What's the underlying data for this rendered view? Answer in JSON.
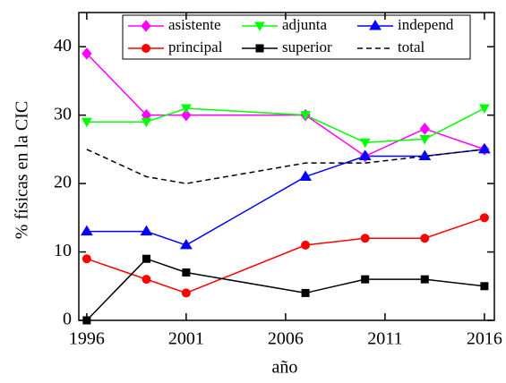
{
  "chart_data": {
    "type": "line",
    "x_label": "año",
    "y_label": "% físicas en la CIC",
    "x": [
      1996,
      1999,
      2001,
      2007,
      2010,
      2013,
      2016
    ],
    "series": [
      {
        "name": "asistente",
        "color": "#ff00ff",
        "marker": "diamond",
        "linestyle": "solid",
        "values": [
          39,
          30,
          30,
          30,
          24,
          28,
          25
        ]
      },
      {
        "name": "adjunta",
        "color": "#00ff00",
        "marker": "triangle-down",
        "linestyle": "solid",
        "values": [
          29,
          29,
          31,
          30,
          26,
          26.5,
          31
        ]
      },
      {
        "name": "independ",
        "color": "#0000ff",
        "marker": "triangle-up",
        "linestyle": "solid",
        "values": [
          13,
          13,
          11,
          21,
          24,
          24,
          25
        ]
      },
      {
        "name": "principal",
        "color": "#ff0000",
        "marker": "circle",
        "linestyle": "solid",
        "values": [
          9,
          6,
          4,
          11,
          12,
          12,
          15
        ]
      },
      {
        "name": "superior",
        "color": "#000000",
        "marker": "square",
        "linestyle": "solid",
        "values": [
          0,
          9,
          7,
          4,
          6,
          6,
          5
        ]
      },
      {
        "name": "total",
        "color": "#000000",
        "marker": "none",
        "linestyle": "dashed",
        "values": [
          25,
          21,
          20,
          23,
          23,
          24,
          25
        ]
      }
    ],
    "xlim": [
      1995.6,
      2016.5
    ],
    "xticks": [
      1996,
      2001,
      2006,
      2011,
      2016
    ],
    "ylim": [
      0,
      45
    ],
    "yticks": [
      0,
      10,
      20,
      30,
      40
    ]
  }
}
